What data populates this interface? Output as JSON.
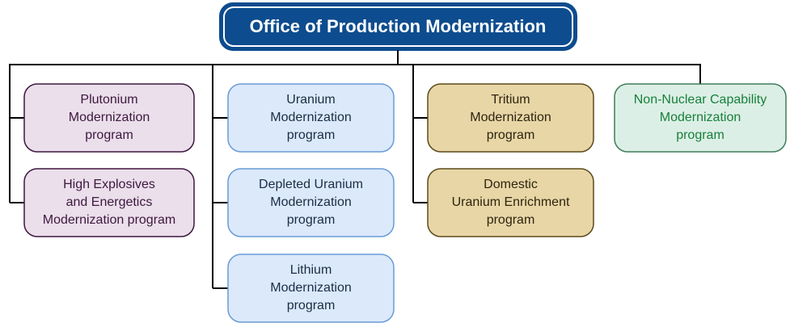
{
  "root": {
    "title": "Office of Production Modernization"
  },
  "columns": [
    {
      "nodes": [
        {
          "lines": [
            "Plutonium",
            "Modernization",
            "program"
          ]
        },
        {
          "lines": [
            "High Explosives",
            "and Energetics",
            "Modernization program"
          ]
        }
      ]
    },
    {
      "nodes": [
        {
          "lines": [
            "Uranium",
            "Modernization",
            "program"
          ]
        },
        {
          "lines": [
            "Depleted Uranium",
            "Modernization",
            "program"
          ]
        },
        {
          "lines": [
            "Lithium",
            "Modernization",
            "program"
          ]
        }
      ]
    },
    {
      "nodes": [
        {
          "lines": [
            "Tritium",
            "Modernization",
            "program"
          ]
        },
        {
          "lines": [
            "Domestic",
            "Uranium Enrichment",
            "program"
          ]
        }
      ]
    },
    {
      "nodes": [
        {
          "lines": [
            "Non-Nuclear Capability",
            "Modernization",
            "program"
          ]
        }
      ]
    }
  ]
}
